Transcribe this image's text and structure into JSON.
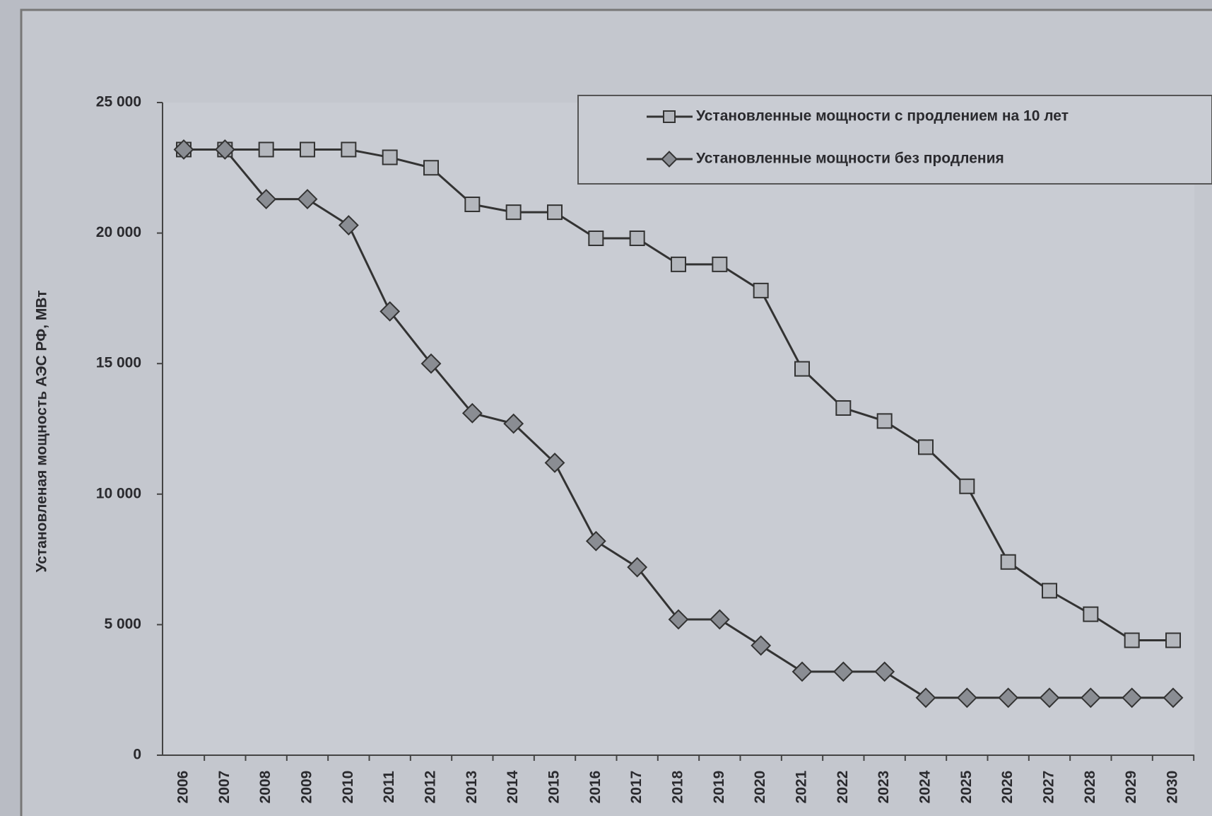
{
  "chart_data": {
    "type": "line",
    "y_label": "Установленая мощность АЭС РФ, МВт",
    "categories": [
      "2006",
      "2007",
      "2008",
      "2009",
      "2010",
      "2011",
      "2012",
      "2013",
      "2014",
      "2015",
      "2016",
      "2017",
      "2018",
      "2019",
      "2020",
      "2021",
      "2022",
      "2023",
      "2024",
      "2025",
      "2026",
      "2027",
      "2028",
      "2029",
      "2030"
    ],
    "series": [
      {
        "name": "Установленные мощности с продлением на 10 лет",
        "color": "#333333",
        "marker": "square",
        "values": [
          23200,
          23200,
          23200,
          23200,
          23200,
          22900,
          22500,
          21100,
          20800,
          20800,
          19800,
          19800,
          18800,
          18800,
          17800,
          14800,
          13300,
          12800,
          11800,
          10300,
          7400,
          6300,
          5400,
          4400,
          4400
        ]
      },
      {
        "name": "Установленные мощности без продления",
        "color": "#333333",
        "marker": "diamond",
        "values": [
          23200,
          23200,
          21300,
          21300,
          20300,
          17000,
          15000,
          13100,
          12700,
          11200,
          8200,
          7200,
          5200,
          5200,
          4200,
          3200,
          3200,
          3200,
          2200,
          2200,
          2200,
          2200,
          2200,
          2200,
          2200
        ]
      }
    ],
    "ylim": [
      0,
      25000
    ],
    "yticks": [
      0,
      {
        "value": 5000,
        "label": "5 000"
      },
      {
        "value": 10000,
        "label": "10 000"
      },
      {
        "value": 15000,
        "label": "15 000"
      },
      {
        "value": 20000,
        "label": "20 000"
      },
      {
        "value": 25000,
        "label": "25 000"
      }
    ],
    "legend": "top-right"
  }
}
